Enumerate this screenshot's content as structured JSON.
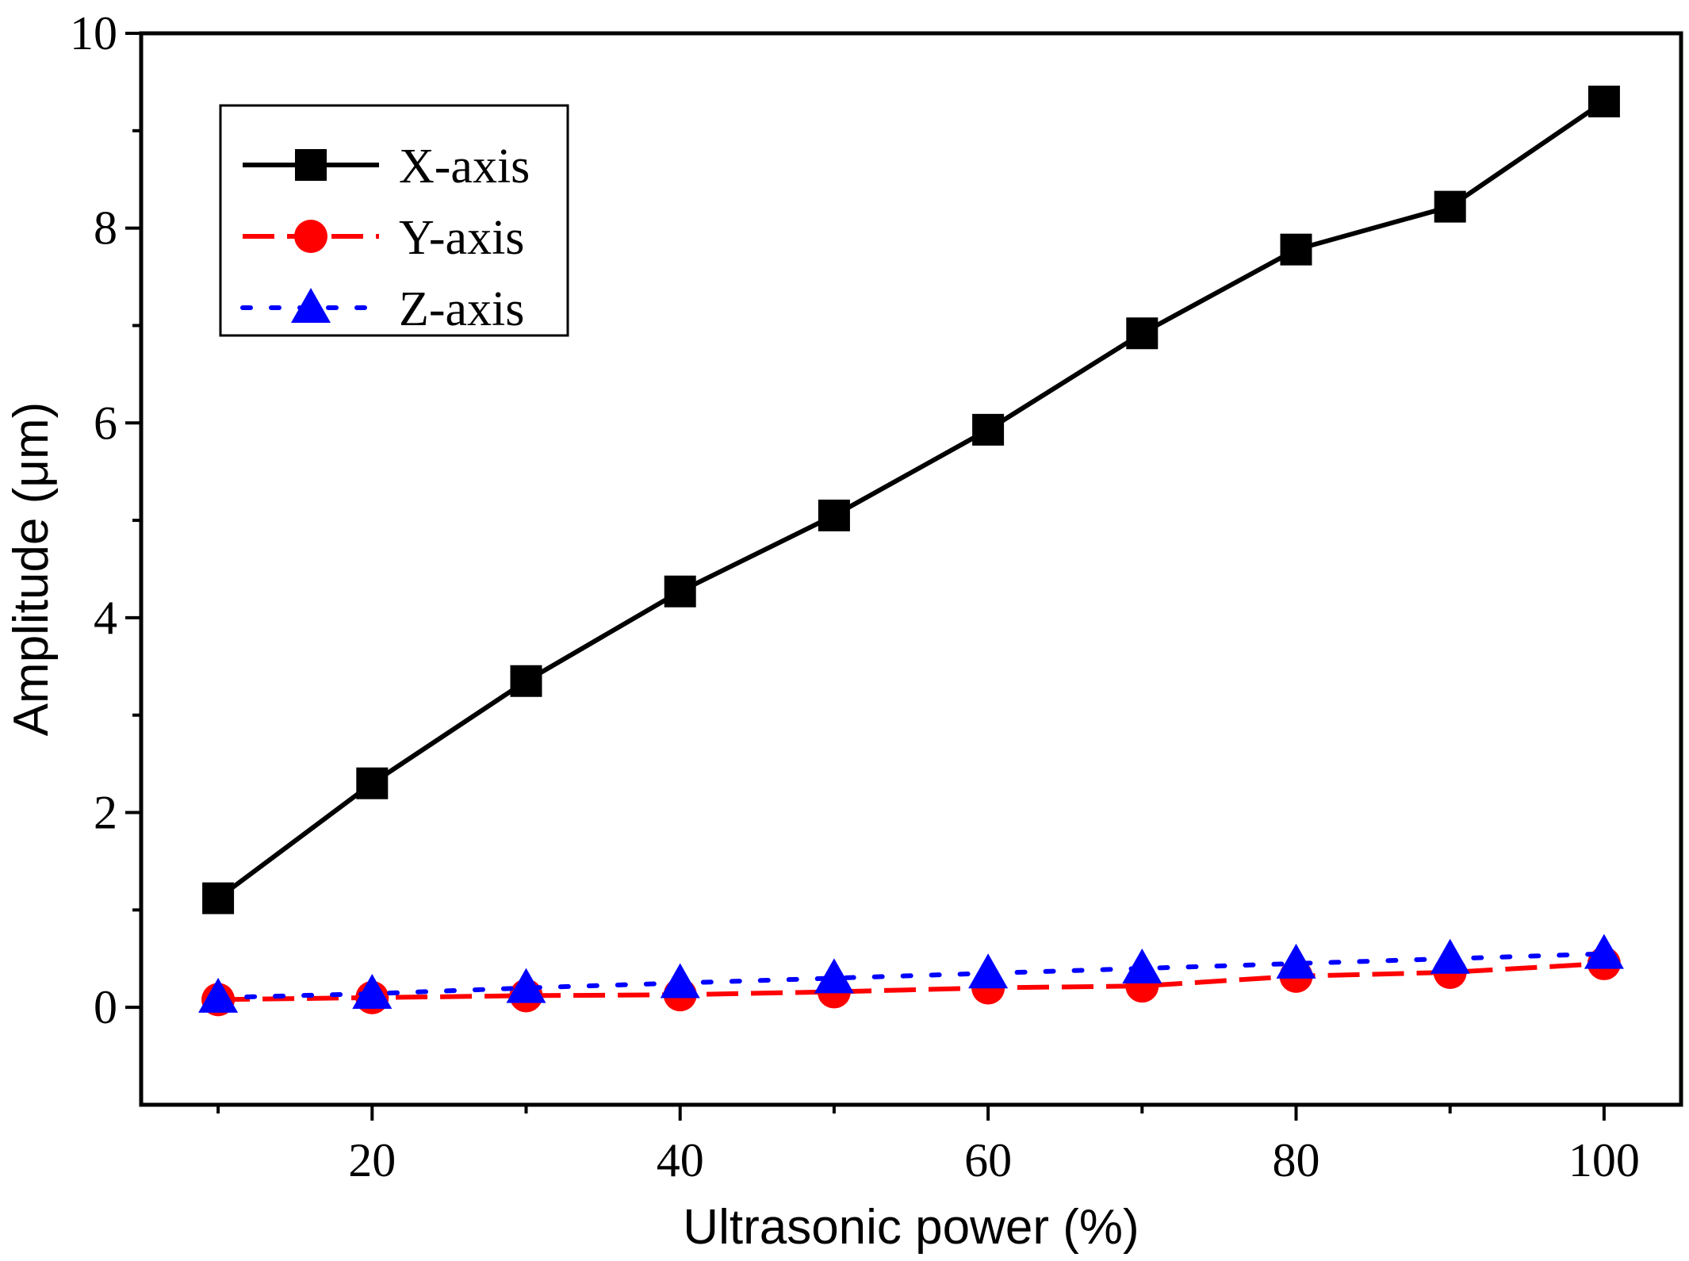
{
  "chart_data": {
    "type": "line",
    "title": "",
    "xlabel": "Ultrasonic power (%)",
    "ylabel": "Amplitude (μm)",
    "xlim": [
      5,
      105
    ],
    "ylim": [
      -1,
      10
    ],
    "xticks": [
      20,
      40,
      60,
      80,
      100
    ],
    "yticks": [
      0,
      2,
      4,
      6,
      8,
      10
    ],
    "x": [
      10,
      20,
      30,
      40,
      50,
      60,
      70,
      80,
      90,
      100
    ],
    "legend_position": "top-left",
    "grid": false,
    "series": [
      {
        "name": "X-axis",
        "color": "#000000",
        "marker": "square",
        "line_style": "solid",
        "values": [
          1.12,
          2.3,
          3.35,
          4.27,
          5.05,
          5.93,
          6.92,
          7.78,
          8.22,
          9.3
        ]
      },
      {
        "name": "Y-axis",
        "color": "#ff0000",
        "marker": "circle",
        "line_style": "dashed",
        "values": [
          0.08,
          0.1,
          0.12,
          0.13,
          0.16,
          0.2,
          0.22,
          0.32,
          0.36,
          0.45
        ]
      },
      {
        "name": "Z-axis",
        "color": "#0000ff",
        "marker": "triangle",
        "line_style": "dotted",
        "values": [
          0.1,
          0.14,
          0.2,
          0.25,
          0.3,
          0.35,
          0.4,
          0.45,
          0.5,
          0.55
        ]
      }
    ]
  }
}
